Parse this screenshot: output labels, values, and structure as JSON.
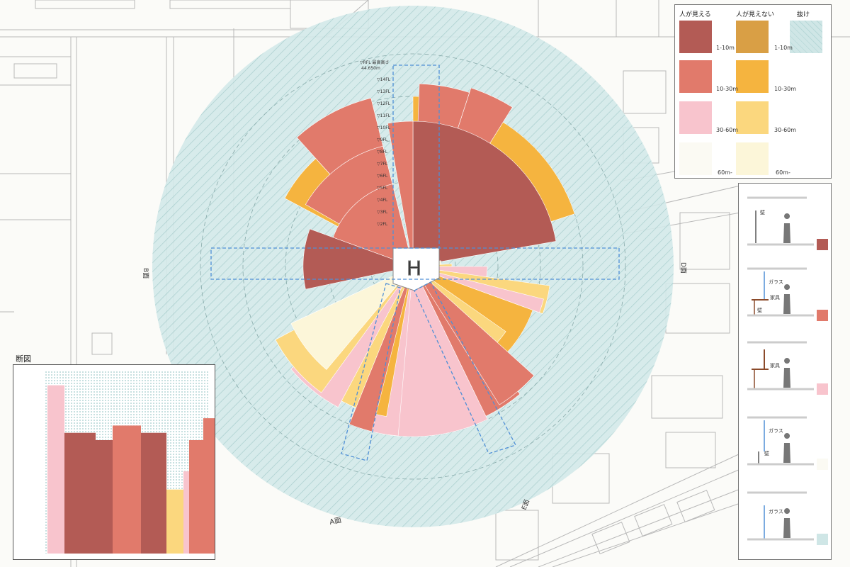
{
  "legend": {
    "headers": {
      "visible": "人が見える",
      "not_visible": "人が見えない",
      "open": "抜け"
    },
    "rows": [
      {
        "range": "1-10m",
        "visible_color": "#b35b55",
        "hidden_color": "#d99f45"
      },
      {
        "range": "10-30m",
        "visible_color": "#e17a6b",
        "hidden_color": "#f5b43f"
      },
      {
        "range": "30-60m",
        "visible_color": "#f8c4cd",
        "hidden_color": "#fbd77e"
      },
      {
        "range": "60m-",
        "visible_color": "#fbfaf3",
        "hidden_color": "#fcf6d9"
      }
    ],
    "open_color": "#cfe6e6"
  },
  "labels": {
    "a_face": "A面",
    "b_face": "B面",
    "d_face": "D面",
    "e_face": "E面",
    "section": "断図",
    "h_mark": "H",
    "floor_top": "▽RFL 最高高さ",
    "floor_top_height": "44.650m"
  },
  "floors": [
    "▽14FL",
    "▽13FL",
    "▽12FL",
    "▽11FL",
    "▽10FL",
    "▽9FL",
    "▽8FL",
    "▽7FL",
    "▽6FL",
    "▽5FL",
    "▽4FL",
    "▽3FL",
    "▽2FL"
  ],
  "side_panels": [
    {
      "labels": [
        "壁"
      ],
      "color": "#b35b55"
    },
    {
      "labels": [
        "ガラス",
        "家具",
        "壁"
      ],
      "color": "#e17a6b"
    },
    {
      "labels": [
        "家具"
      ],
      "color": "#f8c4cd"
    },
    {
      "labels": [
        "ガラス",
        "壁"
      ],
      "color": "#fbfaf3"
    },
    {
      "labels": [
        "ガラス"
      ],
      "color": "#cfe6e6"
    }
  ],
  "section_bars": [
    {
      "value": 0.92,
      "color": "#f8c4cd"
    },
    {
      "value": 0.66,
      "color": "#b35b55"
    },
    {
      "value": 0.62,
      "color": "#b35b55"
    },
    {
      "value": 0.7,
      "color": "#e17a6b"
    },
    {
      "value": 0.66,
      "color": "#b35b55"
    },
    {
      "value": 0.35,
      "color": "#fbd77e"
    },
    {
      "value": 0.45,
      "color": "#f8c4cd"
    },
    {
      "value": 0.62,
      "color": "#e17a6b"
    },
    {
      "value": 0.74,
      "color": "#e17a6b"
    }
  ]
}
